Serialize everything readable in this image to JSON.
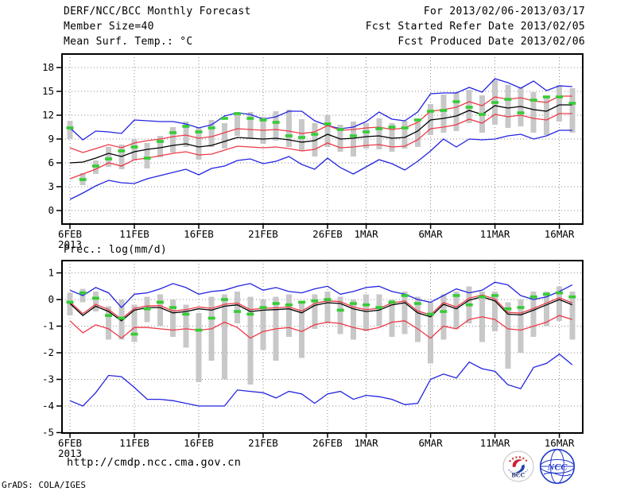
{
  "header": {
    "title": "DERF/NCC/BCC Monthly Forecast",
    "period": "For 2013/02/06-2013/03/17",
    "member_size": "Member Size=40",
    "refer_date": "Fcst Started Refer Date 2013/02/05",
    "produced_date": "Fcst Produced Date 2013/02/06"
  },
  "footer": {
    "url": "http://cmdp.ncc.cma.gov.cn",
    "credit": "GrADS: COLA/IGES",
    "logo_bcc": "BCC",
    "logo_ncc": "NCC"
  },
  "colors": {
    "blue": "#2323e0",
    "red": "#ee3a48",
    "green": "#35cc35",
    "gray": "#c8c8c8",
    "grid": "#8a8a8a",
    "frame": "#000000"
  },
  "chart_data": [
    {
      "type": "line",
      "title": "Mean Surf. Temp.: °C",
      "x": {
        "n_days": 40,
        "tick_labels": [
          "6FEB",
          "11FEB",
          "16FEB",
          "21FEB",
          "26FEB",
          "1MAR",
          "6MAR",
          "11MAR",
          "16MAR"
        ],
        "tick_days": [
          0,
          5,
          10,
          15,
          20,
          23,
          28,
          33,
          38
        ],
        "year_label": "2013"
      },
      "y": {
        "ticks": [
          0,
          3,
          6,
          9,
          12,
          15,
          18
        ],
        "min": 0,
        "max": 18,
        "grid": true
      },
      "series": [
        {
          "name": "ensemble-max",
          "color": "blue",
          "values": [
            10.4,
            8.9,
            10.0,
            9.9,
            9.7,
            11.4,
            11.3,
            11.2,
            11.2,
            10.9,
            10.4,
            10.8,
            11.9,
            12.3,
            12.1,
            11.5,
            11.8,
            12.5,
            12.5,
            11.3,
            10.7,
            10.3,
            10.5,
            11.2,
            12.4,
            11.5,
            11.3,
            12.4,
            14.7,
            14.8,
            14.8,
            15.5,
            14.9,
            16.6,
            16.1,
            15.4,
            16.3,
            15.1,
            15.7,
            15.6
          ]
        },
        {
          "name": "mean-plus-std",
          "color": "red",
          "values": [
            7.9,
            7.3,
            7.8,
            8.3,
            7.9,
            8.5,
            8.8,
            9.0,
            9.3,
            9.5,
            9.1,
            9.3,
            9.8,
            10.3,
            10.2,
            10.1,
            10.2,
            10.0,
            9.7,
            9.9,
            10.7,
            10.1,
            10.2,
            10.4,
            10.5,
            10.2,
            10.4,
            11.1,
            12.5,
            12.7,
            13.0,
            13.7,
            13.2,
            14.3,
            14.0,
            14.2,
            13.8,
            13.6,
            14.4,
            14.4
          ]
        },
        {
          "name": "mean-minus-std",
          "color": "red",
          "values": [
            4.0,
            4.6,
            5.2,
            6.0,
            5.6,
            6.4,
            6.6,
            6.9,
            7.2,
            7.4,
            7.0,
            7.1,
            7.6,
            8.1,
            8.0,
            7.9,
            8.0,
            7.8,
            7.5,
            7.7,
            8.5,
            7.9,
            8.0,
            8.2,
            8.3,
            8.0,
            8.1,
            8.9,
            10.3,
            10.5,
            10.8,
            11.5,
            11.0,
            12.1,
            11.8,
            12.0,
            11.6,
            11.4,
            12.2,
            12.2
          ]
        },
        {
          "name": "ensemble-min",
          "color": "blue",
          "values": [
            1.4,
            2.2,
            3.1,
            3.8,
            3.5,
            3.4,
            4.0,
            4.4,
            4.8,
            5.2,
            4.5,
            5.3,
            5.6,
            6.3,
            6.5,
            5.9,
            6.2,
            6.8,
            5.8,
            5.2,
            6.6,
            5.4,
            4.6,
            5.5,
            6.4,
            5.9,
            5.1,
            6.2,
            7.5,
            9.0,
            8.0,
            9.0,
            8.9,
            9.0,
            9.4,
            9.6,
            9.0,
            9.4,
            10.1,
            10.1
          ]
        },
        {
          "name": "ensemble-mean",
          "color": "black",
          "values": [
            6.0,
            6.1,
            6.6,
            7.2,
            6.8,
            7.4,
            7.7,
            7.9,
            8.2,
            8.4,
            8.0,
            8.2,
            8.7,
            9.2,
            9.1,
            9.0,
            9.1,
            8.9,
            8.6,
            8.8,
            9.6,
            9.0,
            9.1,
            9.3,
            9.4,
            9.1,
            9.2,
            10.0,
            11.4,
            11.6,
            11.9,
            12.6,
            12.1,
            13.2,
            12.9,
            13.1,
            12.7,
            12.5,
            13.3,
            13.3
          ]
        }
      ],
      "markers": {
        "name": "observation",
        "color": "green",
        "values": [
          10.4,
          3.9,
          5.6,
          6.5,
          7.5,
          8.0,
          6.6,
          8.7,
          9.8,
          10.6,
          9.9,
          10.4,
          11.6,
          12.2,
          11.6,
          11.4,
          11.1,
          9.4,
          9.2,
          9.6,
          10.9,
          10.2,
          9.4,
          9.9,
          10.3,
          10.5,
          10.4,
          11.4,
          12.5,
          12.6,
          13.7,
          13.0,
          12.1,
          13.6,
          14.0,
          12.3,
          13.9,
          14.3,
          14.3,
          13.5
        ]
      },
      "bars": {
        "name": "ensemble-spread",
        "color": "gray",
        "ranges": [
          [
            9.0,
            11.3
          ],
          [
            3.2,
            4.7
          ],
          [
            4.6,
            6.3
          ],
          [
            5.5,
            8.0
          ],
          [
            5.2,
            8.3
          ],
          [
            6.3,
            9.0
          ],
          [
            5.3,
            8.5
          ],
          [
            6.7,
            9.4
          ],
          [
            7.3,
            10.5
          ],
          [
            8.0,
            11.2
          ],
          [
            6.4,
            10.5
          ],
          [
            8.0,
            11.4
          ],
          [
            7.8,
            11.0
          ],
          [
            9.4,
            12.4
          ],
          [
            9.0,
            12.4
          ],
          [
            8.4,
            11.8
          ],
          [
            8.8,
            12.5
          ],
          [
            8.0,
            12.7
          ],
          [
            7.5,
            11.5
          ],
          [
            6.8,
            11.0
          ],
          [
            8.0,
            12.0
          ],
          [
            7.4,
            10.8
          ],
          [
            6.8,
            11.2
          ],
          [
            7.8,
            11.0
          ],
          [
            7.7,
            11.6
          ],
          [
            7.4,
            11.0
          ],
          [
            7.8,
            11.3
          ],
          [
            8.0,
            11.2
          ],
          [
            9.5,
            13.4
          ],
          [
            9.8,
            14.6
          ],
          [
            10.0,
            14.9
          ],
          [
            11.0,
            15.2
          ],
          [
            9.8,
            14.5
          ],
          [
            10.8,
            16.4
          ],
          [
            10.4,
            15.8
          ],
          [
            10.6,
            15.5
          ],
          [
            9.8,
            14.9
          ],
          [
            9.5,
            14.2
          ],
          [
            11.2,
            15.8
          ],
          [
            9.8,
            15.4
          ]
        ]
      }
    },
    {
      "type": "line",
      "title": "Prec.: log(mm/d)",
      "x": {
        "n_days": 40,
        "tick_labels": [
          "6FEB",
          "11FEB",
          "16FEB",
          "21FEB",
          "26FEB",
          "1MAR",
          "6MAR",
          "11MAR",
          "16MAR"
        ],
        "tick_days": [
          0,
          5,
          10,
          15,
          20,
          23,
          28,
          33,
          38
        ],
        "year_label": "2013"
      },
      "y": {
        "ticks": [
          1,
          0,
          -1,
          -2,
          -3,
          -4,
          -5
        ],
        "min": -5,
        "max": 1,
        "grid": true
      },
      "series": [
        {
          "name": "ensemble-max",
          "color": "blue",
          "values": [
            0.35,
            0.15,
            0.45,
            0.25,
            -0.3,
            0.2,
            0.25,
            0.4,
            0.6,
            0.45,
            0.2,
            0.3,
            0.35,
            0.5,
            0.6,
            0.35,
            0.45,
            0.3,
            0.25,
            0.4,
            0.5,
            0.2,
            0.3,
            0.45,
            0.5,
            0.3,
            0.2,
            0.0,
            -0.1,
            0.15,
            0.4,
            0.25,
            0.35,
            0.65,
            0.55,
            0.15,
            0.0,
            0.1,
            0.3,
            0.55
          ]
        },
        {
          "name": "mean-plus-std",
          "color": "red",
          "values": [
            -0.09,
            -0.53,
            -0.18,
            -0.38,
            -0.73,
            -0.33,
            -0.24,
            -0.23,
            -0.43,
            -0.38,
            -0.28,
            -0.33,
            -0.18,
            -0.13,
            -0.38,
            -0.33,
            -0.31,
            -0.28,
            -0.43,
            -0.15,
            -0.05,
            -0.08,
            -0.28,
            -0.38,
            -0.33,
            -0.13,
            -0.05,
            -0.43,
            -0.58,
            -0.11,
            -0.28,
            0.05,
            0.17,
            0.02,
            -0.48,
            -0.51,
            -0.33,
            -0.13,
            0.07,
            -0.13
          ]
        },
        {
          "name": "mean-minus-std",
          "color": "red",
          "values": [
            -0.8,
            -1.25,
            -0.95,
            -1.1,
            -1.45,
            -1.05,
            -1.05,
            -1.1,
            -1.15,
            -1.1,
            -1.15,
            -1.1,
            -0.85,
            -1.05,
            -1.45,
            -1.2,
            -1.1,
            -1.05,
            -1.2,
            -0.95,
            -0.85,
            -0.9,
            -1.05,
            -1.15,
            -1.05,
            -0.85,
            -0.8,
            -1.1,
            -1.45,
            -1.0,
            -1.1,
            -0.75,
            -0.65,
            -0.75,
            -1.1,
            -1.15,
            -1.0,
            -0.85,
            -0.6,
            -0.75
          ]
        },
        {
          "name": "ensemble-min",
          "color": "blue",
          "values": [
            -3.8,
            -4.0,
            -3.5,
            -2.85,
            -2.9,
            -3.3,
            -3.75,
            -3.75,
            -3.8,
            -3.9,
            -4.0,
            -4.0,
            -4.0,
            -3.4,
            -3.45,
            -3.5,
            -3.7,
            -3.45,
            -3.55,
            -3.9,
            -3.55,
            -3.45,
            -3.75,
            -3.6,
            -3.65,
            -3.75,
            -3.95,
            -3.9,
            -3.0,
            -2.8,
            -2.95,
            -2.35,
            -2.6,
            -2.7,
            -3.2,
            -3.35,
            -2.55,
            -2.4,
            -2.05,
            -2.45
          ]
        },
        {
          "name": "ensemble-mean",
          "color": "black",
          "values": [
            -0.15,
            -0.6,
            -0.25,
            -0.45,
            -0.8,
            -0.4,
            -0.3,
            -0.3,
            -0.5,
            -0.45,
            -0.35,
            -0.4,
            -0.25,
            -0.2,
            -0.45,
            -0.4,
            -0.38,
            -0.35,
            -0.5,
            -0.22,
            -0.12,
            -0.15,
            -0.35,
            -0.45,
            -0.4,
            -0.2,
            -0.12,
            -0.5,
            -0.65,
            -0.18,
            -0.35,
            -0.02,
            0.1,
            -0.05,
            -0.55,
            -0.58,
            -0.4,
            -0.2,
            0.0,
            -0.2
          ]
        }
      ],
      "markers": {
        "name": "observation",
        "color": "green",
        "values": [
          -0.1,
          0.25,
          0.05,
          -0.6,
          -0.7,
          -1.3,
          -0.35,
          -0.1,
          -0.3,
          -0.55,
          -1.15,
          -0.7,
          0.0,
          -0.45,
          -0.55,
          -0.3,
          -0.15,
          -0.2,
          -0.1,
          -0.05,
          0.0,
          -0.4,
          -0.15,
          -0.2,
          -0.3,
          -0.1,
          0.15,
          -0.15,
          -0.55,
          -0.45,
          0.15,
          -0.2,
          0.1,
          0.15,
          -0.35,
          -0.3,
          0.1,
          0.2,
          0.25,
          0.1
        ]
      },
      "bars": {
        "name": "ensemble-spread",
        "color": "gray",
        "ranges": [
          [
            -0.6,
            0.25
          ],
          [
            -0.1,
            0.4
          ],
          [
            -0.45,
            0.3
          ],
          [
            -1.5,
            -0.25
          ],
          [
            -1.5,
            0.0
          ],
          [
            -1.6,
            -0.2
          ],
          [
            -0.85,
            0.1
          ],
          [
            -1.0,
            0.2
          ],
          [
            -1.4,
            0.0
          ],
          [
            -1.8,
            -0.2
          ],
          [
            -3.1,
            -0.5
          ],
          [
            -2.3,
            0.1
          ],
          [
            -3.0,
            0.2
          ],
          [
            -0.9,
            0.3
          ],
          [
            -3.2,
            0.1
          ],
          [
            -1.9,
            0.0
          ],
          [
            -2.3,
            0.1
          ],
          [
            -1.4,
            0.2
          ],
          [
            -2.2,
            -0.1
          ],
          [
            -1.1,
            0.2
          ],
          [
            -0.9,
            0.3
          ],
          [
            -1.3,
            0.1
          ],
          [
            -1.5,
            0.0
          ],
          [
            -1.2,
            0.2
          ],
          [
            -1.0,
            0.2
          ],
          [
            -1.4,
            0.0
          ],
          [
            -1.3,
            0.3
          ],
          [
            -1.6,
            0.1
          ],
          [
            -2.4,
            -0.1
          ],
          [
            -1.5,
            0.2
          ],
          [
            -1.1,
            0.3
          ],
          [
            -0.9,
            0.5
          ],
          [
            -1.6,
            0.3
          ],
          [
            -1.2,
            0.3
          ],
          [
            -2.6,
            -0.1
          ],
          [
            -2.0,
            0.0
          ],
          [
            -1.4,
            0.3
          ],
          [
            -1.0,
            0.3
          ],
          [
            -0.8,
            0.5
          ],
          [
            -1.5,
            0.3
          ]
        ]
      }
    }
  ]
}
